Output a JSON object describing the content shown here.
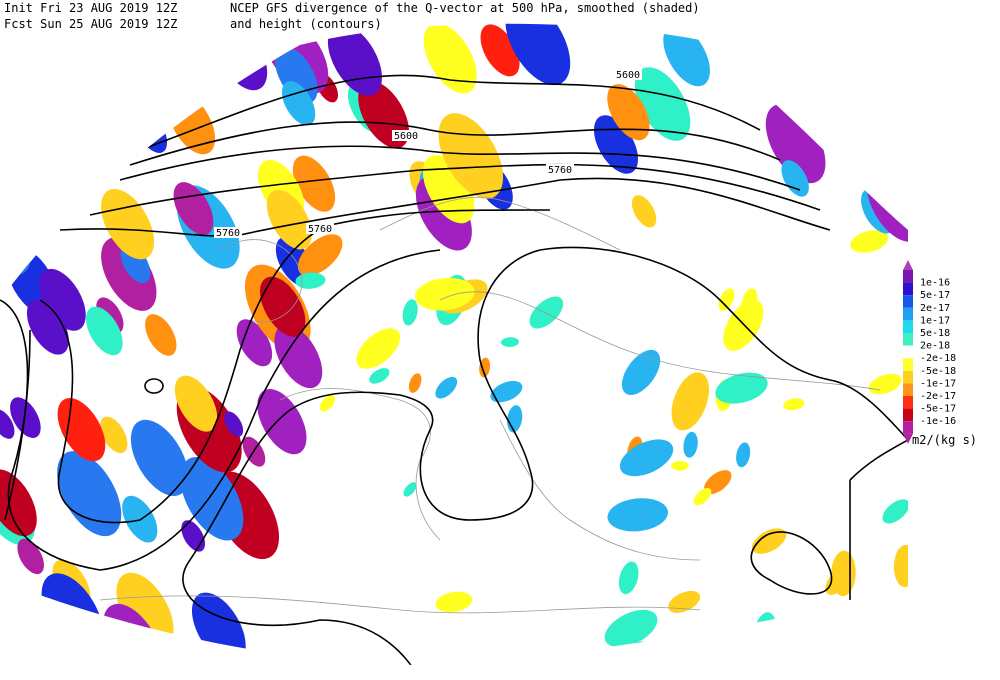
{
  "header": {
    "init": "Init  Fri 23 AUG 2019 12Z",
    "fcst": "Fcst Sun 25 AUG 2019 12Z",
    "title1": "NCEP GFS divergence of the Q-vector at 500 hPa, smoothed (shaded)",
    "title2": "and height (contours)"
  },
  "contour_labels": [
    "5600",
    "5600",
    "5760",
    "5760",
    "5760"
  ],
  "legend": {
    "labels": [
      "1e-16",
      "5e-17",
      "2e-17",
      "1e-17",
      "5e-18",
      "2e-18",
      "-2e-18",
      "-5e-18",
      "-1e-17",
      "-2e-17",
      "-5e-17",
      "-1e-16"
    ],
    "unit": "m2/(kg s)"
  }
}
